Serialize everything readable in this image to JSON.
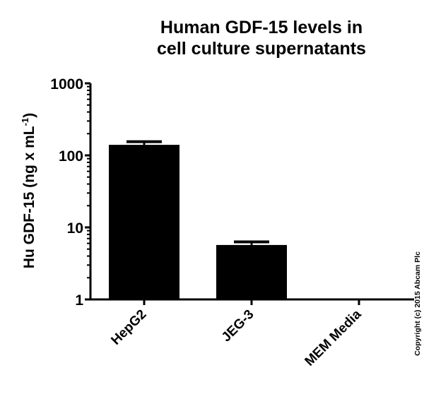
{
  "chart_data": {
    "type": "bar",
    "title": "Human GDF-15 levels in cell culture supernatants",
    "title_lines": [
      "Human GDF-15 levels in",
      "cell culture supernatants"
    ],
    "xlabel": "",
    "ylabel": "Hu GDF-15 (ng x mL-1)",
    "ylabel_main": "Hu GDF-15 (ng x mL",
    "ylabel_sup": "-1",
    "ylabel_tail": ")",
    "yscale": "log",
    "ylim": [
      1,
      1000
    ],
    "yticks": [
      1,
      10,
      100,
      1000
    ],
    "ytick_labels": [
      "1",
      "10",
      "100",
      "1000"
    ],
    "categories": [
      "HepG2",
      "JEG-3",
      "MEM Media"
    ],
    "values": [
      140,
      5.7,
      0
    ],
    "error_upper": [
      155,
      6.3,
      null
    ],
    "bar_color": "#000000",
    "grid": false,
    "legend": null,
    "annotations": [
      "Copyright (c) 2015 Abcam Plc"
    ]
  }
}
